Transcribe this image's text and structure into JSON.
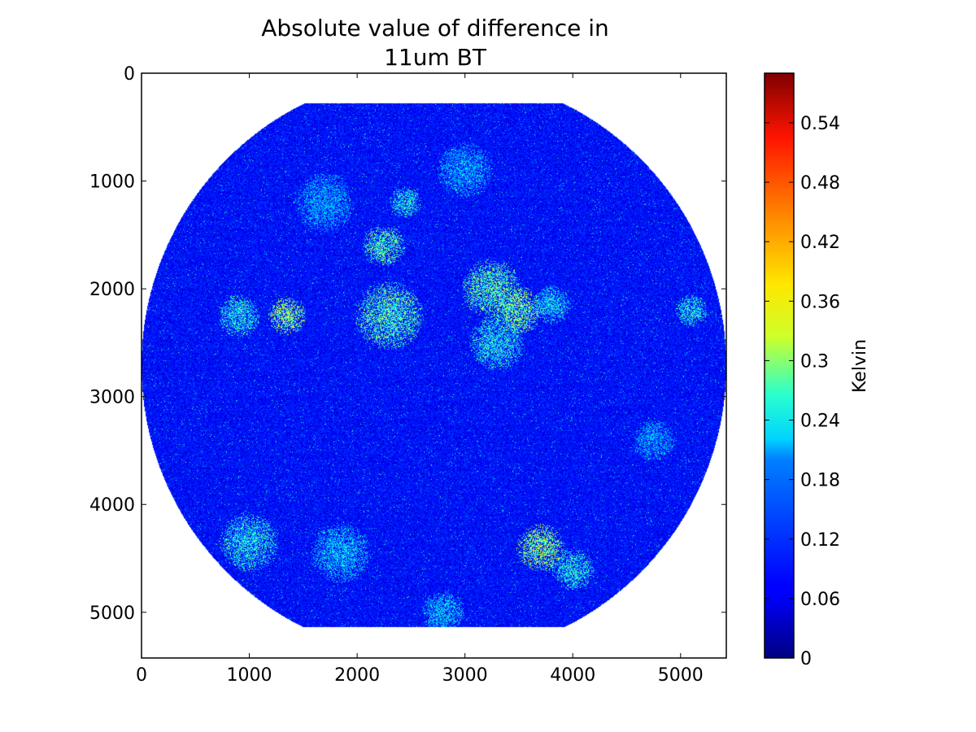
{
  "chart_data": {
    "type": "heatmap",
    "title": [
      "Absolute value of difference in",
      "11um BT"
    ],
    "xlabel": "",
    "ylabel": "",
    "xlim": [
      0,
      5424
    ],
    "ylim": [
      5424,
      0
    ],
    "x_ticks": [
      0,
      1000,
      2000,
      3000,
      4000,
      5000
    ],
    "y_ticks": [
      0,
      1000,
      2000,
      3000,
      4000,
      5000
    ],
    "x_tick_labels": [
      "0",
      "1000",
      "2000",
      "3000",
      "4000",
      "5000"
    ],
    "y_tick_labels": [
      "0",
      "1000",
      "2000",
      "3000",
      "4000",
      "5000"
    ],
    "colormap": "jet",
    "grid": false,
    "colorbar": {
      "label": "Kelvin",
      "range": [
        0,
        0.59
      ],
      "ticks": [
        0,
        0.06,
        0.12,
        0.18,
        0.24,
        0.3,
        0.36,
        0.42,
        0.48,
        0.54
      ],
      "tick_labels": [
        "0",
        "0.06",
        "0.12",
        "0.18",
        "0.24",
        "0.3",
        "0.36",
        "0.42",
        "0.48",
        "0.54"
      ]
    },
    "image": {
      "description_values": "full-disk satellite field; mostly ~0.06–0.12 K with scattered convective patches ~0.24–0.40 K",
      "background_value": 0.08,
      "disk_center": [
        2712,
        2712
      ],
      "disk_radius": 2712,
      "disk_clip_top": 280,
      "disk_clip_bottom": 5140,
      "hot_spots": [
        {
          "x": 1350,
          "y": 2250,
          "r": 180,
          "v": 0.34
        },
        {
          "x": 900,
          "y": 2250,
          "r": 200,
          "v": 0.26
        },
        {
          "x": 2250,
          "y": 1600,
          "r": 200,
          "v": 0.3
        },
        {
          "x": 2300,
          "y": 2250,
          "r": 320,
          "v": 0.3
        },
        {
          "x": 2450,
          "y": 1200,
          "r": 150,
          "v": 0.26
        },
        {
          "x": 3250,
          "y": 2000,
          "r": 280,
          "v": 0.3
        },
        {
          "x": 3500,
          "y": 2200,
          "r": 220,
          "v": 0.32
        },
        {
          "x": 3300,
          "y": 2500,
          "r": 260,
          "v": 0.26
        },
        {
          "x": 3800,
          "y": 2150,
          "r": 180,
          "v": 0.24
        },
        {
          "x": 3700,
          "y": 4400,
          "r": 220,
          "v": 0.34
        },
        {
          "x": 4000,
          "y": 4600,
          "r": 200,
          "v": 0.26
        },
        {
          "x": 1000,
          "y": 4350,
          "r": 280,
          "v": 0.26
        },
        {
          "x": 1850,
          "y": 4450,
          "r": 280,
          "v": 0.22
        },
        {
          "x": 1700,
          "y": 1200,
          "r": 280,
          "v": 0.2
        },
        {
          "x": 3000,
          "y": 900,
          "r": 260,
          "v": 0.2
        },
        {
          "x": 5100,
          "y": 2200,
          "r": 150,
          "v": 0.26
        },
        {
          "x": 4750,
          "y": 3400,
          "r": 200,
          "v": 0.2
        },
        {
          "x": 2800,
          "y": 5000,
          "r": 200,
          "v": 0.22
        }
      ]
    }
  }
}
